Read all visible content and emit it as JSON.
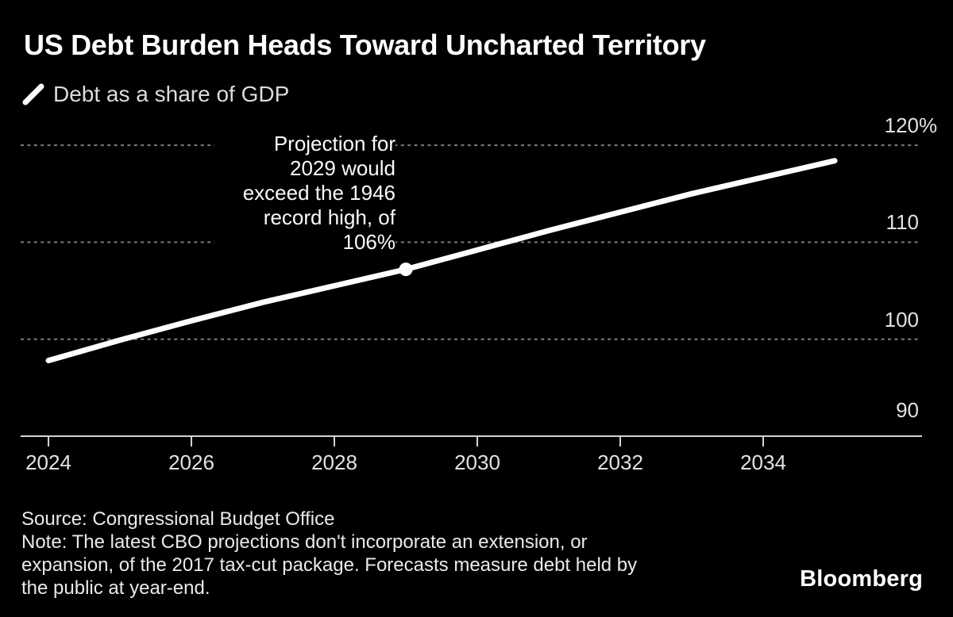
{
  "page": {
    "background": "#000000",
    "accent": "#ffffff"
  },
  "header": {
    "title": "US Debt Burden Heads Toward Uncharted Territory",
    "legend": {
      "swatch_icon": "line-slash-icon",
      "label": "Debt as a share of GDP"
    }
  },
  "chart_data": {
    "type": "line",
    "title": "US Debt Burden Heads Toward Uncharted Territory",
    "unit": "% of GDP",
    "x": [
      2024,
      2025,
      2026,
      2027,
      2028,
      2029,
      2030,
      2031,
      2032,
      2033,
      2034,
      2035
    ],
    "series": [
      {
        "name": "Debt as a share of GDP",
        "values": [
          97.8,
          99.9,
          101.9,
          103.8,
          105.5,
          107.2,
          109.2,
          111.2,
          113.1,
          115.0,
          116.7,
          118.4
        ]
      }
    ],
    "xticks": [
      {
        "value": 2024,
        "label": "2024"
      },
      {
        "value": 2026,
        "label": "2026"
      },
      {
        "value": 2028,
        "label": "2028"
      },
      {
        "value": 2030,
        "label": "2030"
      },
      {
        "value": 2032,
        "label": "2032"
      },
      {
        "value": 2034,
        "label": "2034"
      }
    ],
    "yticks": [
      {
        "value": 120,
        "label": "120",
        "suffix": "%"
      },
      {
        "value": 110,
        "label": "110",
        "suffix": ""
      },
      {
        "value": 100,
        "label": "100",
        "suffix": ""
      },
      {
        "value": 90,
        "label": "90",
        "suffix": ""
      }
    ],
    "ylim": [
      90,
      123
    ],
    "xlim": [
      2023.6,
      2036.2
    ],
    "grid": "horizontal-dashed",
    "legend_position": "top-left",
    "y_axis_side": "right",
    "line_color": "#ffffff",
    "grid_color": "#7d7d7d",
    "axis_color": "#d4d4d4",
    "annotation": {
      "text": "Projection for\n2029 would\nexceed the 1946\nrecord high, of\n106%",
      "point": {
        "x": 2029,
        "y": 107.2
      }
    }
  },
  "footer": {
    "source": "Source: Congressional Budget Office",
    "note": "Note: The latest CBO projections don't incorporate an extension, or\nexpansion, of the 2017 tax-cut package. Forecasts measure debt held by\nthe public at year-end.",
    "brand": "Bloomberg"
  }
}
